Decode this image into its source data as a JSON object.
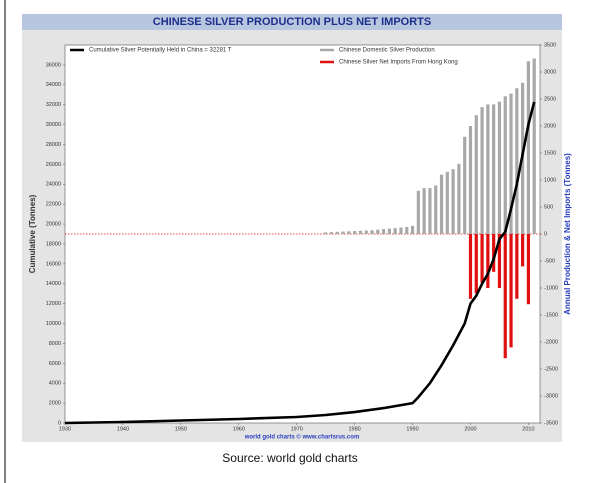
{
  "chart_data": {
    "type": "combo",
    "title": "CHINESE SILVER PRODUCTION PLUS NET IMPORTS",
    "y_label": "Cumulative (Tonnes)",
    "y2_label": "Annual Production & Net Imports (Tonnes)",
    "watermark": "world gold charts © www.chartsrus.com",
    "caption": "Source: world gold charts",
    "xlim": [
      1930,
      2012
    ],
    "xticks": [
      1930,
      1940,
      1950,
      1960,
      1970,
      1980,
      1990,
      2000,
      2010
    ],
    "ylim": [
      0,
      38000
    ],
    "yticks": [
      0,
      2000,
      4000,
      6000,
      8000,
      10000,
      12000,
      14000,
      16000,
      18000,
      20000,
      22000,
      24000,
      26000,
      28000,
      30000,
      32000,
      34000,
      36000
    ],
    "y2lim": [
      -3500,
      3500
    ],
    "y2ticks": [
      -3500,
      -3000,
      -2500,
      -2000,
      -1500,
      -1000,
      -500,
      0,
      500,
      1000,
      1500,
      2000,
      2500,
      3000,
      3500
    ],
    "series": [
      {
        "name": "Cumulative Silver Potentially Held in China = 32281 T",
        "color": "#000000",
        "type": "line",
        "x": [
          1930,
          1940,
          1950,
          1960,
          1970,
          1975,
          1980,
          1985,
          1990,
          1991,
          1993,
          1995,
          1997,
          1999,
          2000,
          2001,
          2002,
          2003,
          2004,
          2005,
          2006,
          2007,
          2008,
          2009,
          2010,
          2011
        ],
        "values": [
          0,
          100,
          250,
          400,
          600,
          800,
          1100,
          1500,
          2000,
          2600,
          4000,
          5800,
          7800,
          10000,
          12000,
          12800,
          14000,
          15000,
          16500,
          18500,
          19200,
          21500,
          24000,
          27000,
          30000,
          32281
        ]
      },
      {
        "name": "Chinese Domestic Silver Production",
        "color": "#a8a8a8",
        "type": "bar",
        "axis": "y2",
        "x": [
          1975,
          1976,
          1977,
          1978,
          1979,
          1980,
          1981,
          1982,
          1983,
          1984,
          1985,
          1986,
          1987,
          1988,
          1989,
          1990,
          1991,
          1992,
          1993,
          1994,
          1995,
          1996,
          1997,
          1998,
          1999,
          2000,
          2001,
          2002,
          2003,
          2004,
          2005,
          2006,
          2007,
          2008,
          2009,
          2010,
          2011
        ],
        "values": [
          30,
          35,
          40,
          45,
          50,
          55,
          60,
          65,
          70,
          80,
          90,
          100,
          110,
          120,
          130,
          150,
          800,
          850,
          850,
          900,
          1100,
          1150,
          1200,
          1300,
          1800,
          2000,
          2200,
          2350,
          2400,
          2400,
          2450,
          2550,
          2600,
          2700,
          2800,
          3200,
          3250
        ]
      },
      {
        "name": "Chinese Silver Net Imports From Hong Kong",
        "color": "#e01010",
        "type": "bar",
        "axis": "y2",
        "x": [
          2000,
          2001,
          2002,
          2003,
          2004,
          2005,
          2006,
          2007,
          2008,
          2009,
          2010
        ],
        "values": [
          -1200,
          -1100,
          -900,
          -1000,
          -700,
          -1000,
          -2300,
          -2100,
          -1200,
          -600,
          -1300
        ]
      }
    ]
  }
}
